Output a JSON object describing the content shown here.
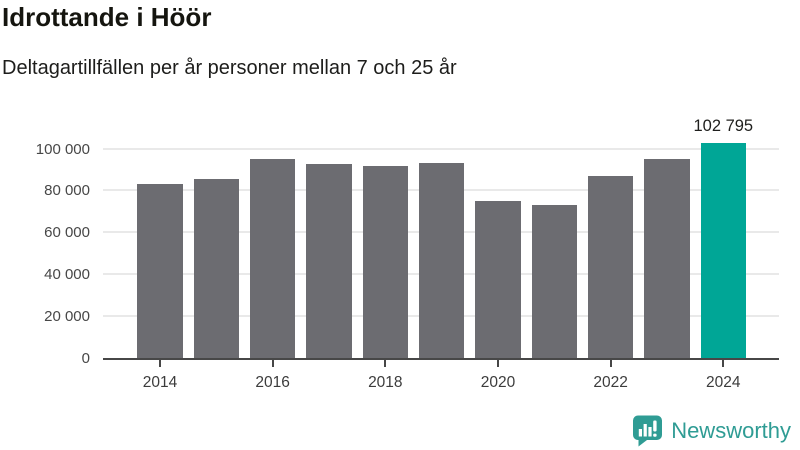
{
  "header": {
    "title": "Idrottande i Höör",
    "subtitle": "Deltagartillfällen per år personer mellan 7 och 25 år"
  },
  "chart_data": {
    "type": "bar",
    "title": "Idrottande i Höör",
    "subtitle": "Deltagartillfällen per år personer mellan 7 och 25 år",
    "categories": [
      "2014",
      "2015",
      "2016",
      "2017",
      "2018",
      "2019",
      "2020",
      "2021",
      "2022",
      "2023",
      "2024"
    ],
    "values": [
      83100,
      85700,
      95200,
      92700,
      91600,
      93200,
      74800,
      73200,
      86700,
      95000,
      102795
    ],
    "highlight_index": 10,
    "highlight_value_label": "102 795",
    "xtick_labels": [
      "2014",
      "2016",
      "2018",
      "2020",
      "2022",
      "2024"
    ],
    "ytick_values": [
      0,
      20000,
      40000,
      60000,
      80000,
      100000
    ],
    "ytick_labels": [
      "0",
      "20 000",
      "40 000",
      "60 000",
      "80 000",
      "100 000"
    ],
    "ylim": [
      0,
      114600
    ],
    "xlabel": "",
    "ylabel": "",
    "grid": true,
    "legend": false,
    "bar_color": "#6c6c71",
    "highlight_color": "#00a696",
    "grid_color": "#e9e9e9",
    "axis_color": "#474747"
  },
  "footer": {
    "brand": "Newsworthy",
    "logo_icon": "newsworthy-bubble-bar-chart-icon",
    "brand_color": "#2f9c94"
  }
}
